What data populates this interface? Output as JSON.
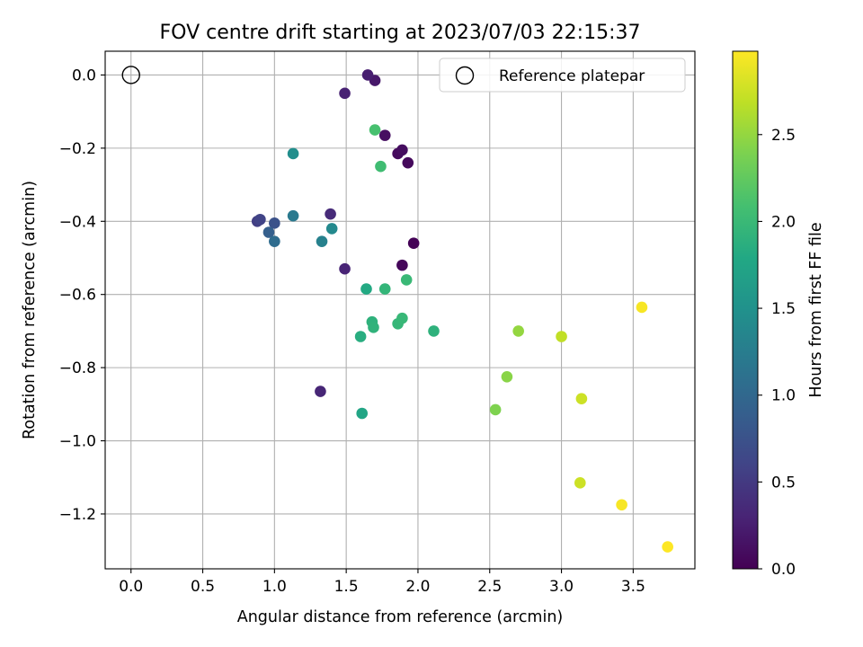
{
  "chart_data": {
    "type": "scatter",
    "title": "FOV centre drift starting at 2023/07/03 22:15:37",
    "xlabel": "Angular distance from reference (arcmin)",
    "ylabel": "Rotation from reference (arcmin)",
    "xlim": [
      -0.18,
      3.93
    ],
    "ylim": [
      -1.35,
      0.065
    ],
    "xticks": [
      0.0,
      0.5,
      1.0,
      1.5,
      2.0,
      2.5,
      3.0,
      3.5
    ],
    "xtick_labels": [
      "0.0",
      "0.5",
      "1.0",
      "1.5",
      "2.0",
      "2.5",
      "3.0",
      "3.5"
    ],
    "yticks": [
      0.0,
      -0.2,
      -0.4,
      -0.6,
      -0.8,
      -1.0,
      -1.2
    ],
    "ytick_labels": [
      "0.0",
      "−0.2",
      "−0.4",
      "−0.6",
      "−0.8",
      "−1.0",
      "−1.2"
    ],
    "grid": true,
    "legend": {
      "position": "top-right",
      "label": "Reference platepar",
      "marker": "open-circle"
    },
    "reference_point": {
      "x": 0.0,
      "y": 0.0
    },
    "colorbar": {
      "label": "Hours from first FF file",
      "colormap": "viridis",
      "min": 0.0,
      "max": 2.98,
      "ticks": [
        0.0,
        0.5,
        1.0,
        1.5,
        2.0,
        2.5
      ],
      "tick_labels": [
        "0.0",
        "0.5",
        "1.0",
        "1.5",
        "2.0",
        "2.5"
      ]
    },
    "points": [
      {
        "x": 1.97,
        "y": -0.46,
        "c": 0.02
      },
      {
        "x": 1.89,
        "y": -0.52,
        "c": 0.05
      },
      {
        "x": 1.93,
        "y": -0.24,
        "c": 0.07
      },
      {
        "x": 1.86,
        "y": -0.215,
        "c": 0.08
      },
      {
        "x": 1.89,
        "y": -0.205,
        "c": 0.1
      },
      {
        "x": 1.77,
        "y": -0.165,
        "c": 0.12
      },
      {
        "x": 1.7,
        "y": -0.015,
        "c": 0.2
      },
      {
        "x": 1.65,
        "y": 0.0,
        "c": 0.25
      },
      {
        "x": 1.49,
        "y": -0.05,
        "c": 0.28
      },
      {
        "x": 1.49,
        "y": -0.53,
        "c": 0.3
      },
      {
        "x": 1.32,
        "y": -0.865,
        "c": 0.32
      },
      {
        "x": 1.39,
        "y": -0.38,
        "c": 0.36
      },
      {
        "x": 0.88,
        "y": -0.4,
        "c": 0.55
      },
      {
        "x": 0.9,
        "y": -0.395,
        "c": 0.6
      },
      {
        "x": 1.0,
        "y": -0.405,
        "c": 0.75
      },
      {
        "x": 0.96,
        "y": -0.43,
        "c": 0.9
      },
      {
        "x": 1.0,
        "y": -0.455,
        "c": 1.05
      },
      {
        "x": 1.13,
        "y": -0.385,
        "c": 1.2
      },
      {
        "x": 1.33,
        "y": -0.455,
        "c": 1.3
      },
      {
        "x": 1.4,
        "y": -0.42,
        "c": 1.4
      },
      {
        "x": 1.13,
        "y": -0.215,
        "c": 1.45
      },
      {
        "x": 1.61,
        "y": -0.925,
        "c": 1.75
      },
      {
        "x": 1.64,
        "y": -0.585,
        "c": 1.8
      },
      {
        "x": 1.6,
        "y": -0.715,
        "c": 1.85
      },
      {
        "x": 1.68,
        "y": -0.675,
        "c": 1.9
      },
      {
        "x": 1.69,
        "y": -0.69,
        "c": 1.92
      },
      {
        "x": 1.77,
        "y": -0.585,
        "c": 1.95
      },
      {
        "x": 1.86,
        "y": -0.68,
        "c": 1.97
      },
      {
        "x": 1.89,
        "y": -0.665,
        "c": 1.98
      },
      {
        "x": 1.92,
        "y": -0.56,
        "c": 2.0
      },
      {
        "x": 2.11,
        "y": -0.7,
        "c": 1.9
      },
      {
        "x": 1.74,
        "y": -0.25,
        "c": 2.05
      },
      {
        "x": 1.7,
        "y": -0.15,
        "c": 2.1
      },
      {
        "x": 2.54,
        "y": -0.915,
        "c": 2.4
      },
      {
        "x": 2.62,
        "y": -0.825,
        "c": 2.45
      },
      {
        "x": 2.7,
        "y": -0.7,
        "c": 2.5
      },
      {
        "x": 3.0,
        "y": -0.715,
        "c": 2.7
      },
      {
        "x": 3.14,
        "y": -0.885,
        "c": 2.75
      },
      {
        "x": 3.13,
        "y": -1.115,
        "c": 2.75
      },
      {
        "x": 3.56,
        "y": -0.635,
        "c": 2.95
      },
      {
        "x": 3.42,
        "y": -1.175,
        "c": 2.95
      },
      {
        "x": 3.74,
        "y": -1.29,
        "c": 2.98
      }
    ]
  }
}
